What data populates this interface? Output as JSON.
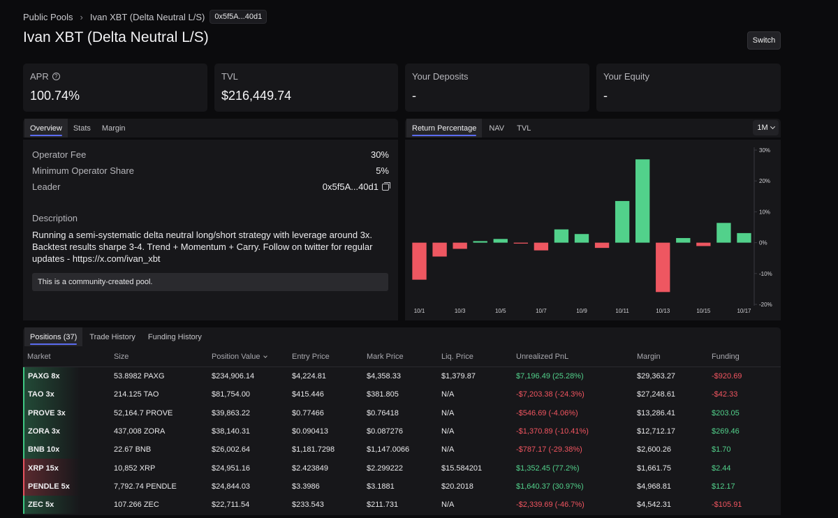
{
  "breadcrumb": {
    "root": "Public Pools",
    "current": "Ivan XBT (Delta Neutral L/S)",
    "address": "0x5f5A...40d1"
  },
  "page": {
    "title": "Ivan XBT (Delta Neutral L/S)",
    "switch_label": "Switch"
  },
  "stats": [
    {
      "label": "APR",
      "value": "100.74%"
    },
    {
      "label": "TVL",
      "value": "$216,449.74"
    },
    {
      "label": "Your Deposits",
      "value": "-"
    },
    {
      "label": "Your Equity",
      "value": "-"
    }
  ],
  "left_tabs": [
    "Overview",
    "Stats",
    "Margin"
  ],
  "overview": {
    "operator_fee_label": "Operator Fee",
    "operator_fee": "30%",
    "min_share_label": "Minimum Operator Share",
    "min_share": "5%",
    "leader_label": "Leader",
    "leader": "0x5f5A...40d1",
    "description_label": "Description",
    "description": "Running a semi-systematic delta neutral long/short strategy with leverage around 3x. Backtest results sharpe 3-4. Trend + Momentum + Carry. Follow on twitter for regular updates - https://x.com/ivan_xbt",
    "note": "This is a community-created pool."
  },
  "chart_tabs": [
    "Return Percentage",
    "NAV",
    "TVL"
  ],
  "range": "1M",
  "chart_data": {
    "type": "bar",
    "title": "Return Percentage",
    "categories": [
      "10/1",
      "10/2",
      "10/3",
      "10/4",
      "10/5",
      "10/6",
      "10/7",
      "10/8",
      "10/9",
      "10/10",
      "10/11",
      "10/12",
      "10/13",
      "10/14",
      "10/15",
      "10/16",
      "10/17"
    ],
    "x_tick_labels": [
      "10/1",
      "10/3",
      "10/5",
      "10/7",
      "10/9",
      "10/11",
      "10/13",
      "10/15",
      "10/17"
    ],
    "values": [
      -12,
      -4.5,
      -2,
      0.5,
      1.2,
      -0.3,
      -2.5,
      4.3,
      2.8,
      -1.7,
      13.5,
      27,
      -16,
      1.5,
      -1.1,
      6.4,
      3.1
    ],
    "y_tick_labels": [
      "30%",
      "20%",
      "10%",
      "0%",
      "-10%",
      "-20%"
    ],
    "ylim": [
      -20,
      30
    ],
    "colors": {
      "positive": "#52d18b",
      "negative": "#ee5761"
    }
  },
  "bottom_tabs": [
    "Positions (37)",
    "Trade History",
    "Funding History"
  ],
  "positions": {
    "columns": [
      "Market",
      "Size",
      "Position Value",
      "Entry Price",
      "Mark Price",
      "Liq. Price",
      "Unrealized PnL",
      "Margin",
      "Funding"
    ],
    "rows": [
      {
        "market": "PAXG 8x",
        "side": "long",
        "size": "53.8982 PAXG",
        "value": "$234,906.14",
        "entry": "$4,224.81",
        "mark": "$4,358.33",
        "liq": "$1,379.87",
        "pnl": "$7,196.49 (25.28%)",
        "pnl_sign": "pos",
        "margin": "$29,363.27",
        "funding": "-$920.69",
        "funding_sign": "neg"
      },
      {
        "market": "TAO 3x",
        "side": "long",
        "size": "214.125 TAO",
        "value": "$81,754.00",
        "entry": "$415.446",
        "mark": "$381.805",
        "liq": "N/A",
        "pnl": "-$7,203.38 (-24.3%)",
        "pnl_sign": "neg",
        "margin": "$27,248.61",
        "funding": "-$42.33",
        "funding_sign": "neg"
      },
      {
        "market": "PROVE 3x",
        "side": "long",
        "size": "52,164.7 PROVE",
        "value": "$39,863.22",
        "entry": "$0.77466",
        "mark": "$0.76418",
        "liq": "N/A",
        "pnl": "-$546.69 (-4.06%)",
        "pnl_sign": "neg",
        "margin": "$13,286.41",
        "funding": "$203.05",
        "funding_sign": "pos"
      },
      {
        "market": "ZORA 3x",
        "side": "long",
        "size": "437,008 ZORA",
        "value": "$38,140.31",
        "entry": "$0.090413",
        "mark": "$0.087276",
        "liq": "N/A",
        "pnl": "-$1,370.89 (-10.41%)",
        "pnl_sign": "neg",
        "margin": "$12,712.17",
        "funding": "$269.46",
        "funding_sign": "pos"
      },
      {
        "market": "BNB 10x",
        "side": "long",
        "size": "22.67 BNB",
        "value": "$26,002.64",
        "entry": "$1,181.7298",
        "mark": "$1,147.0066",
        "liq": "N/A",
        "pnl": "-$787.17 (-29.38%)",
        "pnl_sign": "neg",
        "margin": "$2,600.26",
        "funding": "$1.70",
        "funding_sign": "pos"
      },
      {
        "market": "XRP 15x",
        "side": "short",
        "size": "10,852 XRP",
        "value": "$24,951.16",
        "entry": "$2.423849",
        "mark": "$2.299222",
        "liq": "$15.584201",
        "pnl": "$1,352.45 (77.2%)",
        "pnl_sign": "pos",
        "margin": "$1,661.75",
        "funding": "$2.44",
        "funding_sign": "pos"
      },
      {
        "market": "PENDLE 5x",
        "side": "short",
        "size": "7,792.74 PENDLE",
        "value": "$24,844.03",
        "entry": "$3.3986",
        "mark": "$3.1881",
        "liq": "$20.2018",
        "pnl": "$1,640.37 (30.97%)",
        "pnl_sign": "pos",
        "margin": "$4,968.81",
        "funding": "$12.17",
        "funding_sign": "pos"
      },
      {
        "market": "ZEC 5x",
        "side": "long",
        "size": "107.266 ZEC",
        "value": "$22,711.54",
        "entry": "$233.543",
        "mark": "$211.731",
        "liq": "N/A",
        "pnl": "-$2,339.69 (-46.7%)",
        "pnl_sign": "neg",
        "margin": "$4,542.31",
        "funding": "-$105.91",
        "funding_sign": "neg"
      }
    ]
  }
}
